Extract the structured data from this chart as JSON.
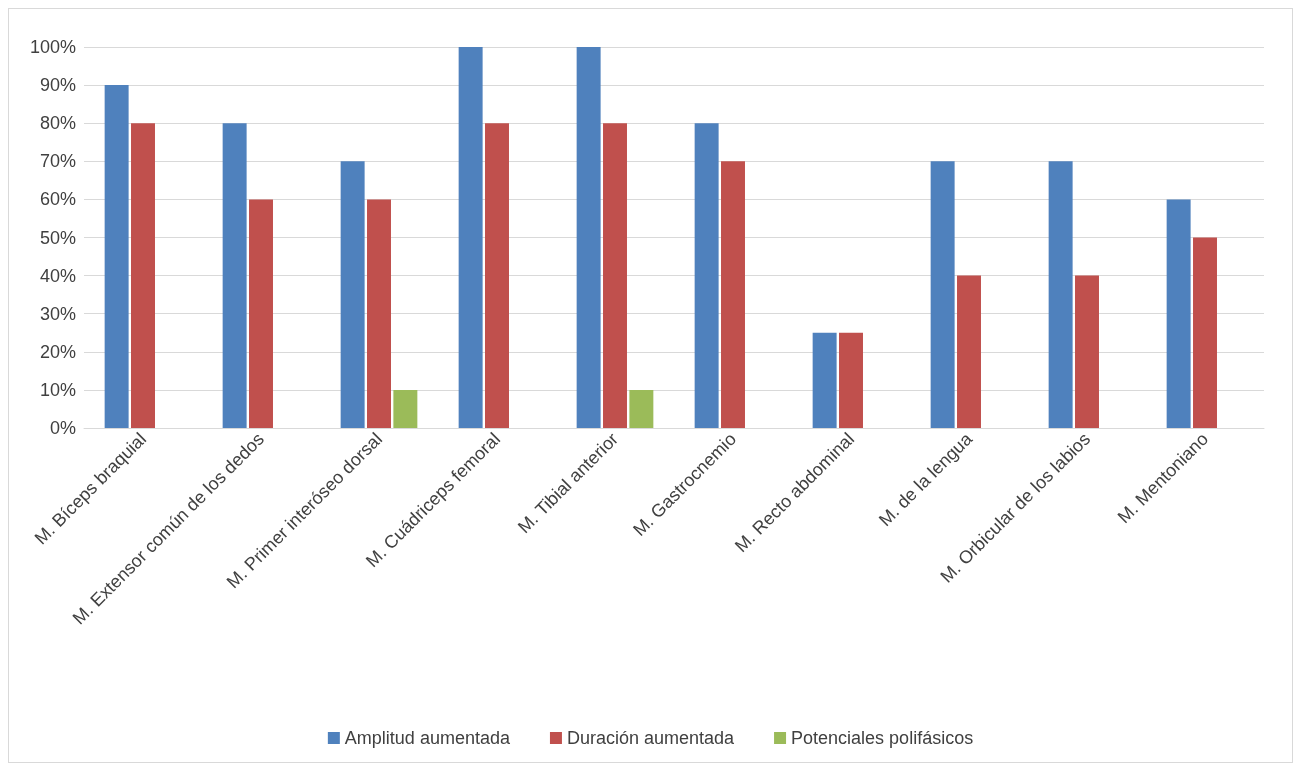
{
  "chart_data": {
    "type": "bar",
    "categories": [
      "M. Bíceps braquial",
      "M. Extensor común de los dedos",
      "M. Primer interóseo dorsal",
      "M. Cuádriceps femoral",
      "M. Tibial anterior",
      "M. Gastrocnemio",
      "M. Recto abdominal",
      "M. de la lengua",
      "M. Orbicular de los labios",
      "M. Mentoniano"
    ],
    "series": [
      {
        "name": "Amplitud aumentada",
        "color": "#4f81bd",
        "values": [
          90,
          80,
          70,
          100,
          100,
          80,
          25,
          70,
          70,
          60
        ]
      },
      {
        "name": "Duración aumentada",
        "color": "#c0504d",
        "values": [
          80,
          60,
          60,
          80,
          80,
          70,
          25,
          40,
          40,
          50
        ]
      },
      {
        "name": "Potenciales polifásicos",
        "color": "#9bbb59",
        "values": [
          null,
          null,
          10,
          null,
          10,
          null,
          null,
          null,
          null,
          null
        ]
      }
    ],
    "ylim": [
      0,
      100
    ],
    "yticks": [
      {
        "value": 0,
        "label": "0%"
      },
      {
        "value": 10,
        "label": "10%"
      },
      {
        "value": 20,
        "label": "20%"
      },
      {
        "value": 30,
        "label": "30%"
      },
      {
        "value": 40,
        "label": "40%"
      },
      {
        "value": 50,
        "label": "50%"
      },
      {
        "value": 60,
        "label": "60%"
      },
      {
        "value": 70,
        "label": "70%"
      },
      {
        "value": 80,
        "label": "80%"
      },
      {
        "value": 90,
        "label": "90%"
      },
      {
        "value": 100,
        "label": "100%"
      }
    ],
    "grid": "y",
    "legend": "bottom"
  }
}
